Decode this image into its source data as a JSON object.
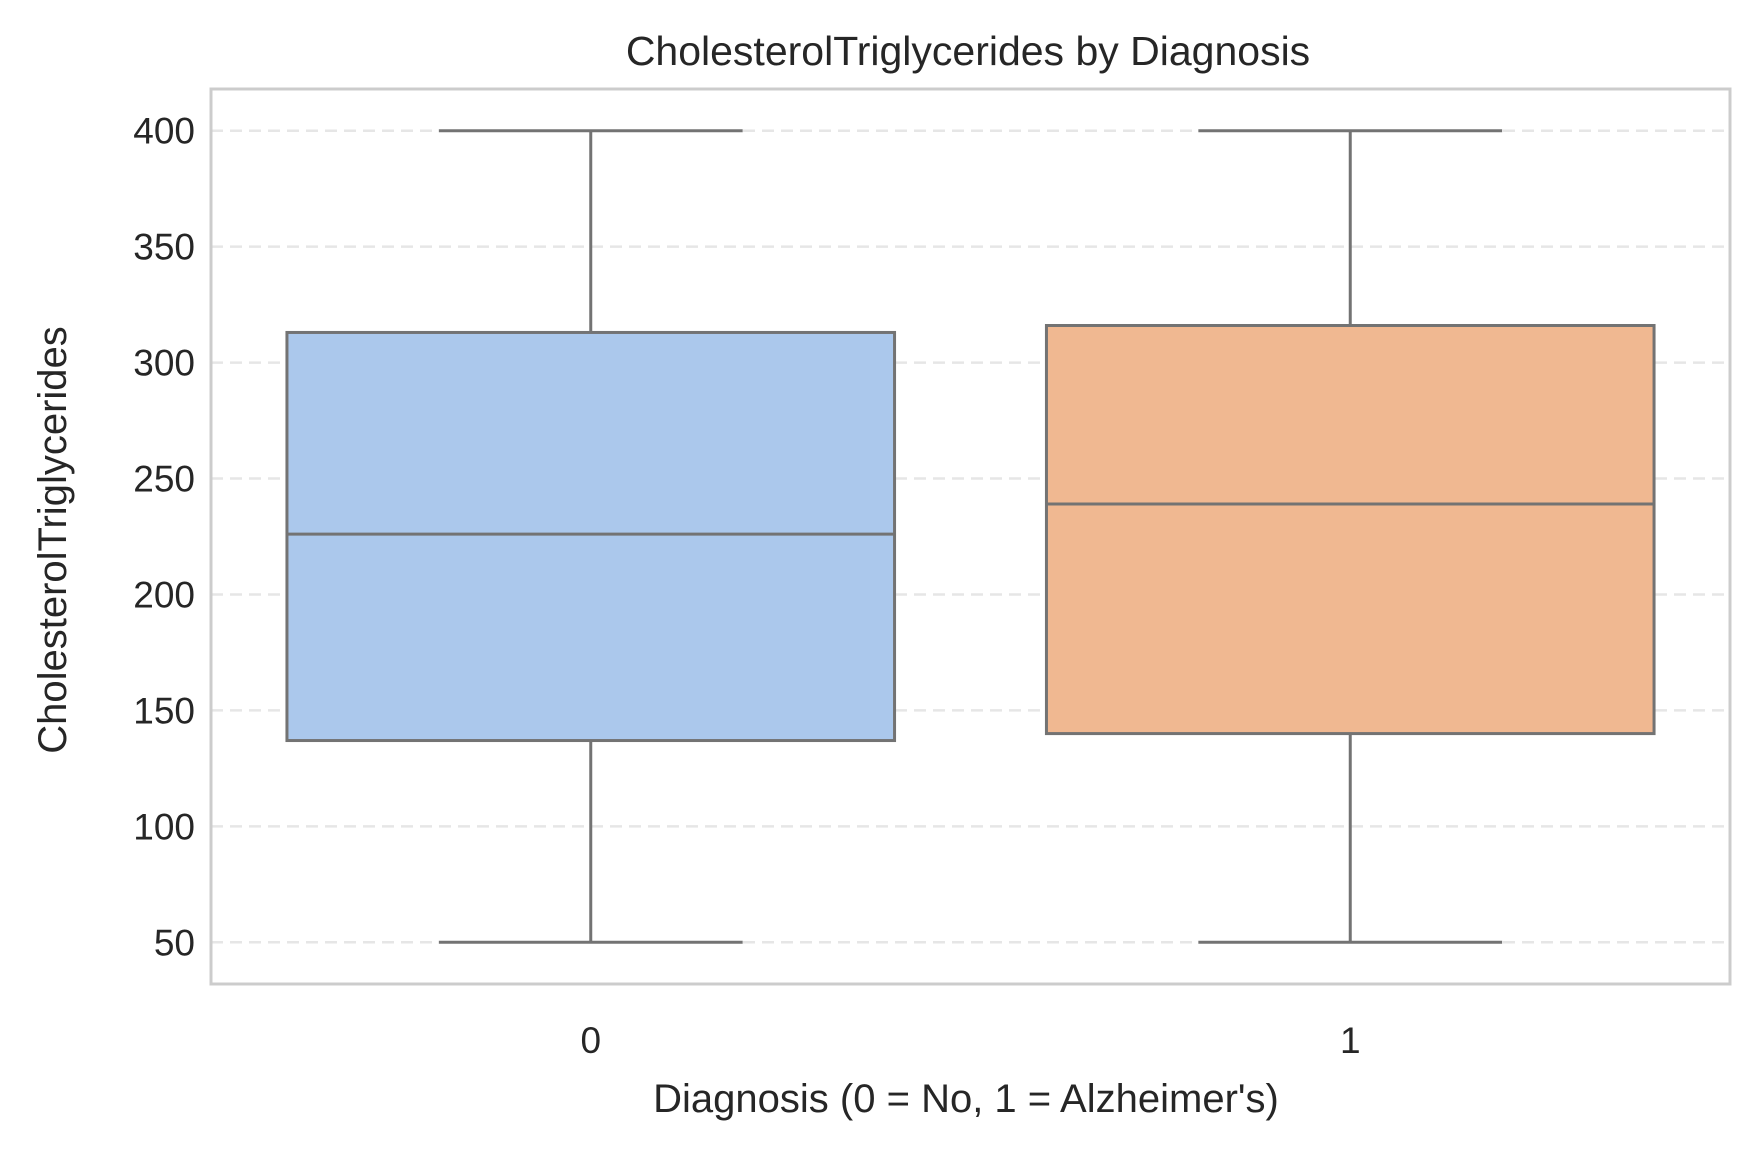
{
  "chart_data": {
    "type": "box",
    "title": "CholesterolTriglycerides by Diagnosis",
    "xlabel": "Diagnosis (0 = No, 1 = Alzheimer's)",
    "ylabel": "CholesterolTriglycerides",
    "ylim": [
      32,
      418
    ],
    "yticks": [
      50,
      100,
      150,
      200,
      250,
      300,
      350,
      400
    ],
    "grid": true,
    "categories": [
      "0",
      "1"
    ],
    "boxes": [
      {
        "category": "0",
        "whisker_low": 50,
        "q1": 137,
        "median": 226,
        "q3": 313,
        "whisker_high": 400,
        "color": "#abc8ec"
      },
      {
        "category": "1",
        "whisker_low": 50,
        "q1": 140,
        "median": 239,
        "q3": 316,
        "whisker_high": 400,
        "color": "#f0b891"
      }
    ],
    "colors": {
      "box_edge": "#737373",
      "grid": "#e6e6e6",
      "frame": "#cccccc"
    }
  }
}
